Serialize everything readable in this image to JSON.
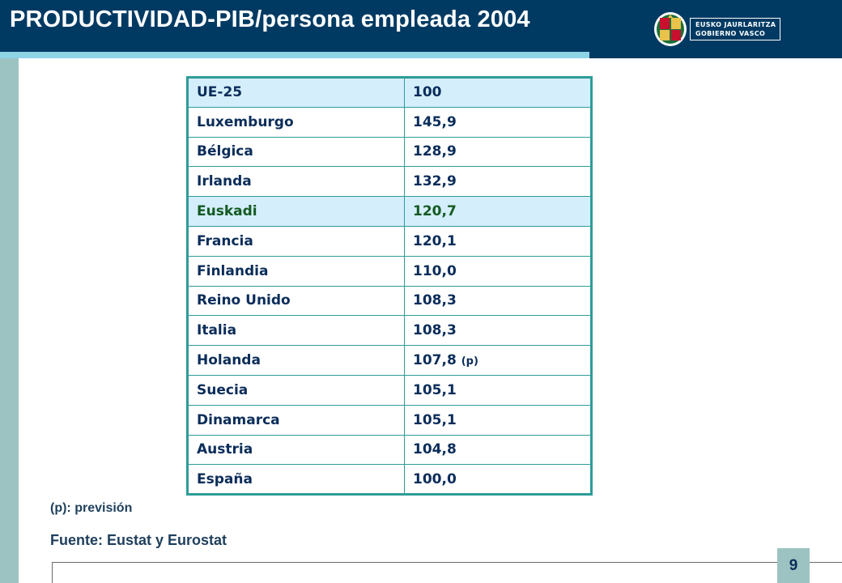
{
  "header": {
    "title": "PRODUCTIVIDAD-PIB/persona empleada 2004",
    "logo_line1": "EUSKO JAURLARITZA",
    "logo_line2": "GOBIERNO VASCO"
  },
  "table": {
    "rows": [
      {
        "name": "UE-25",
        "value": "100",
        "note": "",
        "highlight": true
      },
      {
        "name": "Luxemburgo",
        "value": "145,9",
        "note": ""
      },
      {
        "name": "Bélgica",
        "value": "128,9",
        "note": ""
      },
      {
        "name": "Irlanda",
        "value": "132,9",
        "note": ""
      },
      {
        "name": "Euskadi",
        "value": "120,7",
        "note": "",
        "highlight": true
      },
      {
        "name": "Francia",
        "value": "120,1",
        "note": ""
      },
      {
        "name": "Finlandia",
        "value": "110,0",
        "note": ""
      },
      {
        "name": "Reino Unido",
        "value": "108,3",
        "note": ""
      },
      {
        "name": "Italia",
        "value": "108,3",
        "note": ""
      },
      {
        "name": "Holanda",
        "value": "107,8",
        "note": "(p)"
      },
      {
        "name": "Suecia",
        "value": "105,1",
        "note": ""
      },
      {
        "name": "Dinamarca",
        "value": "105,1",
        "note": ""
      },
      {
        "name": "Austria",
        "value": "104,8",
        "note": ""
      },
      {
        "name": "España",
        "value": "100,0",
        "note": ""
      }
    ]
  },
  "footnote": "(p): previsión",
  "source": "Fuente: Eustat y Eurostat",
  "page_number": "9",
  "colors": {
    "header_bg": "#003a63",
    "accent": "#8fd3e6",
    "table_border": "#2e9c98",
    "highlight_bg": "#d4eefc",
    "euskadi_text": "#145a22",
    "text": "#0b2d5a"
  }
}
